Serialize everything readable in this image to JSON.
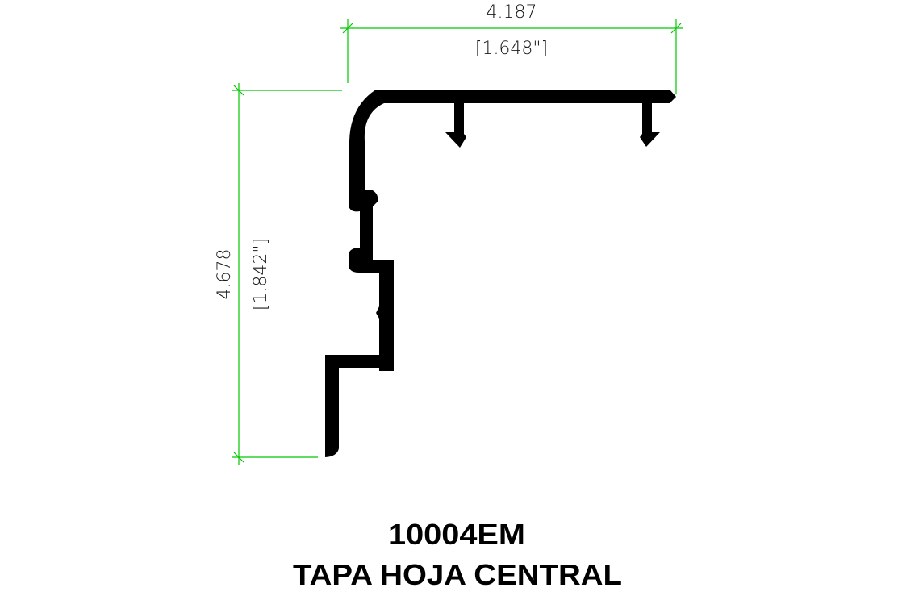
{
  "drawing": {
    "part_code": "10004EM",
    "part_name": "TAPA HOJA CENTRAL",
    "width_dimension": {
      "metric": "4.187",
      "imperial": "[1.648\"]"
    },
    "height_dimension": {
      "metric": "4.678",
      "imperial": "[1.842\"]"
    },
    "colors": {
      "dimension_lines": "#00c800",
      "profile": "#000000",
      "background": "#ffffff"
    }
  }
}
